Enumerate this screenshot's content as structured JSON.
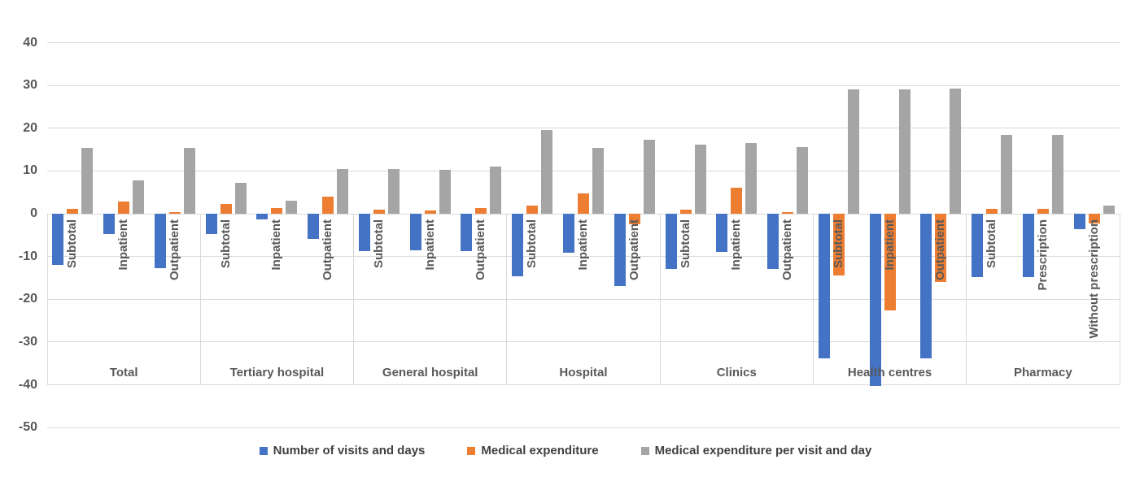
{
  "chart_data": {
    "type": "bar",
    "title": "",
    "grid": true,
    "legend_position": "bottom",
    "y_axis": {
      "min": -50,
      "max": 40,
      "step": 10,
      "ticks": [
        40,
        30,
        20,
        10,
        0,
        -10,
        -20,
        -30,
        -40,
        -50
      ]
    },
    "series": [
      {
        "name": "Number of visits and days",
        "color": "#4472C4"
      },
      {
        "name": "Medical expenditure",
        "color": "#ED7D31"
      },
      {
        "name": "Medical expenditure per visit and day",
        "color": "#A5A5A5"
      }
    ],
    "groups": [
      {
        "label": "Total",
        "subcategories": [
          {
            "label": "Subtotal",
            "values": [
              -12.0,
              1.1,
              15.4
            ]
          },
          {
            "label": "Inpatient",
            "values": [
              -4.7,
              2.8,
              7.7
            ]
          },
          {
            "label": "Outpatient",
            "values": [
              -12.8,
              0.4,
              15.4
            ]
          }
        ]
      },
      {
        "label": "Tertiary hospital",
        "subcategories": [
          {
            "label": "Subtotal",
            "values": [
              -4.7,
              2.3,
              7.3
            ]
          },
          {
            "label": "Inpatient",
            "values": [
              -1.4,
              1.3,
              3.0
            ]
          },
          {
            "label": "Outpatient",
            "values": [
              -5.9,
              3.9,
              10.4
            ]
          }
        ]
      },
      {
        "label": "General hospital",
        "subcategories": [
          {
            "label": "Subtotal",
            "values": [
              -8.7,
              1.0,
              10.5
            ]
          },
          {
            "label": "Inpatient",
            "values": [
              -8.5,
              0.8,
              10.3
            ]
          },
          {
            "label": "Outpatient",
            "values": [
              -8.7,
              1.3,
              11.0
            ]
          }
        ]
      },
      {
        "label": "Hospital",
        "subcategories": [
          {
            "label": "Subtotal",
            "values": [
              -14.6,
              1.9,
              19.5
            ]
          },
          {
            "label": "Inpatient",
            "values": [
              -9.2,
              4.7,
              15.3
            ]
          },
          {
            "label": "Outpatient",
            "values": [
              -17.0,
              -2.4,
              17.3
            ]
          }
        ]
      },
      {
        "label": "Clinics",
        "subcategories": [
          {
            "label": "Subtotal",
            "values": [
              -13.0,
              0.9,
              16.1
            ]
          },
          {
            "label": "Inpatient",
            "values": [
              -8.9,
              6.0,
              16.6
            ]
          },
          {
            "label": "Outpatient",
            "values": [
              -13.0,
              0.3,
              15.6
            ]
          }
        ]
      },
      {
        "label": "Health centres",
        "subcategories": [
          {
            "label": "Subtotal",
            "values": [
              -33.8,
              -14.5,
              29.0
            ]
          },
          {
            "label": "Inpatient",
            "values": [
              -40.3,
              -22.6,
              29.0
            ]
          },
          {
            "label": "Outpatient",
            "values": [
              -33.8,
              -16.0,
              29.2
            ]
          }
        ]
      },
      {
        "label": "Pharmacy",
        "subcategories": [
          {
            "label": "Subtotal",
            "values": [
              -14.8,
              1.1,
              18.4
            ]
          },
          {
            "label": "Prescription",
            "values": [
              -14.8,
              1.1,
              18.4
            ]
          },
          {
            "label": "Without prescription",
            "values": [
              -3.6,
              -2.2,
              1.9
            ]
          }
        ]
      }
    ],
    "colors": {
      "gridline": "#d9d9d9",
      "axis_text": "#595959",
      "legend_text": "#404040",
      "background": "#ffffff"
    }
  }
}
